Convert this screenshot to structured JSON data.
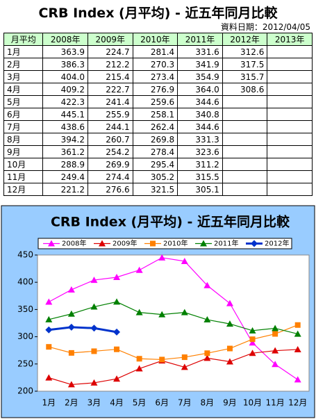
{
  "title": "CRB Index (月平均) - 近五年同月比較",
  "date": "資料日期：2012/04/05",
  "table": {
    "header": [
      "月平均",
      "2008年",
      "2009年",
      "2010年",
      "2011年",
      "2012年",
      "2013年"
    ],
    "rows": [
      [
        "1月",
        "363.9",
        "224.7",
        "281.4",
        "331.6",
        "312.6"
      ],
      [
        "2月",
        "386.3",
        "212.2",
        "270.3",
        "341.9",
        "317.5"
      ],
      [
        "3月",
        "404.0",
        "215.4",
        "273.4",
        "354.9",
        "315.7"
      ],
      [
        "4月",
        "409.2",
        "222.7",
        "276.9",
        "364.0",
        "308.6"
      ],
      [
        "5月",
        "422.3",
        "241.4",
        "259.6",
        "344.6"
      ],
      [
        "6月",
        "445.1",
        "255.9",
        "258.1",
        "340.8"
      ],
      [
        "7月",
        "438.6",
        "244.1",
        "262.4",
        "344.6"
      ],
      [
        "8月",
        "394.2",
        "260.7",
        "269.8",
        "331.3"
      ],
      [
        "9月",
        "361.2",
        "254.2",
        "278.4",
        "323.6"
      ],
      [
        "10月",
        "288.9",
        "269.9",
        "295.4",
        "311.2"
      ],
      [
        "11月",
        "249.4",
        "274.4",
        "305.2",
        "315.5"
      ],
      [
        "12月",
        "221.2",
        "276.6",
        "321.5",
        "305.1"
      ]
    ]
  },
  "chart_data": {
    "type": "line",
    "title": "CRB Index (月平均) - 近五年同月比較",
    "categories": [
      "1月",
      "2月",
      "3月",
      "4月",
      "5月",
      "6月",
      "7月",
      "8月",
      "9月",
      "10月",
      "11月",
      "12月"
    ],
    "series": [
      {
        "name": "2008年",
        "color": "#ff00ff",
        "marker": "triangle",
        "values": [
          363.9,
          386.3,
          404.0,
          409.2,
          422.3,
          445.1,
          438.6,
          394.2,
          361.2,
          288.9,
          249.4,
          221.2
        ]
      },
      {
        "name": "2009年",
        "color": "#dd0000",
        "marker": "triangle",
        "values": [
          224.7,
          212.2,
          215.4,
          222.7,
          241.4,
          255.9,
          244.1,
          260.7,
          254.2,
          269.9,
          274.4,
          276.6
        ]
      },
      {
        "name": "2010年",
        "color": "#ff8000",
        "marker": "square",
        "values": [
          281.4,
          270.3,
          273.4,
          276.9,
          259.6,
          258.1,
          262.4,
          269.8,
          278.4,
          295.4,
          305.2,
          321.5
        ]
      },
      {
        "name": "2011年",
        "color": "#008000",
        "marker": "triangle",
        "values": [
          331.6,
          341.9,
          354.9,
          364.0,
          344.6,
          340.8,
          344.6,
          331.3,
          323.6,
          311.2,
          315.5,
          305.1
        ]
      },
      {
        "name": "2012年",
        "color": "#0033cc",
        "marker": "diamond",
        "width": 3,
        "values": [
          312.6,
          317.5,
          315.7,
          308.6,
          null,
          null,
          null,
          null,
          null,
          null,
          null,
          null
        ]
      }
    ],
    "ylim": [
      200,
      450
    ],
    "yticks": [
      200,
      250,
      300,
      350,
      400,
      450
    ],
    "grid": false
  }
}
